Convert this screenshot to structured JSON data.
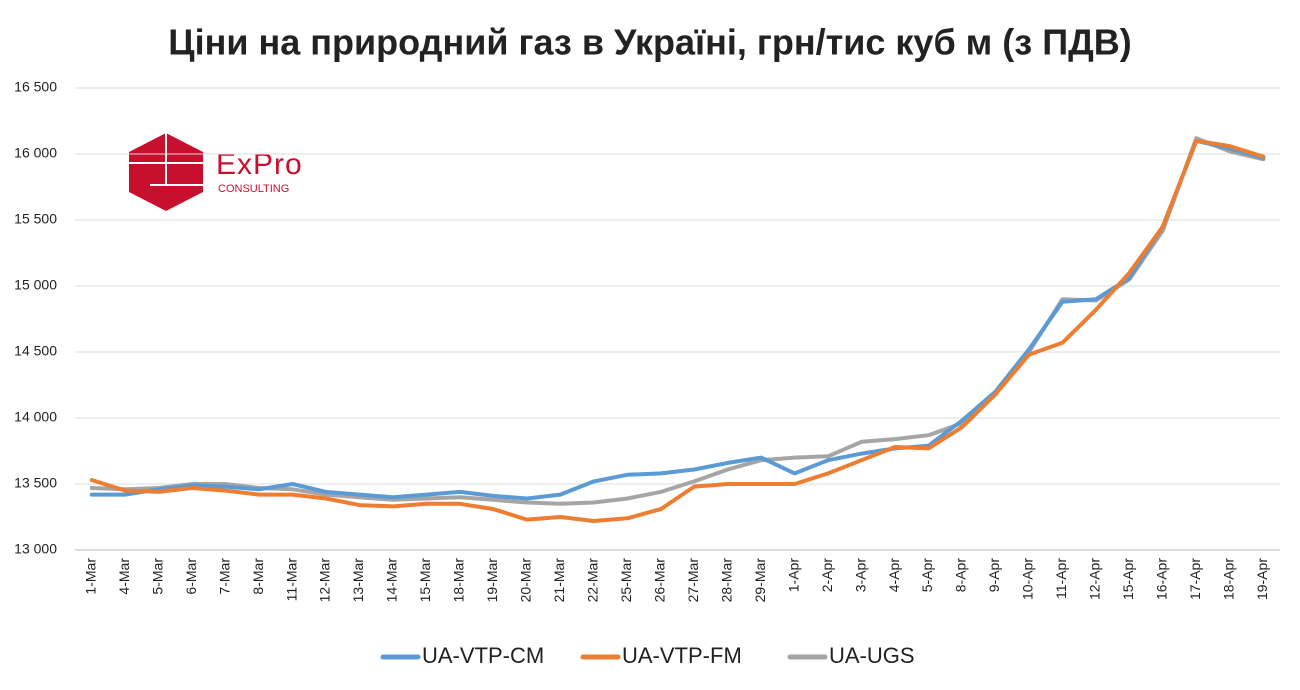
{
  "chart_data": {
    "type": "line",
    "title": "Ціни на природний газ в Україні, грн/тис куб м (з ПДВ)",
    "categories": [
      "1-Mar",
      "4-Mar",
      "5-Mar",
      "6-Mar",
      "7-Mar",
      "8-Mar",
      "11-Mar",
      "12-Mar",
      "13-Mar",
      "14-Mar",
      "15-Mar",
      "18-Mar",
      "19-Mar",
      "20-Mar",
      "21-Mar",
      "22-Mar",
      "25-Mar",
      "26-Mar",
      "27-Mar",
      "28-Mar",
      "29-Mar",
      "1-Apr",
      "2-Apr",
      "3-Apr",
      "4-Apr",
      "5-Apr",
      "8-Apr",
      "9-Apr",
      "10-Apr",
      "11-Apr",
      "12-Apr",
      "15-Apr",
      "16-Apr",
      "17-Apr",
      "18-Apr",
      "19-Apr"
    ],
    "series": [
      {
        "name": "UA-VTP-CM",
        "color": "#5b9bd5",
        "values": [
          13420,
          13420,
          13460,
          13490,
          13480,
          13460,
          13500,
          13440,
          13420,
          13400,
          13420,
          13440,
          13410,
          13390,
          13420,
          13520,
          13570,
          13580,
          13610,
          13660,
          13700,
          13580,
          13680,
          13730,
          13770,
          13790,
          13980,
          14200,
          14520,
          14880,
          14900,
          15060,
          15450,
          16100,
          16040,
          15970
        ]
      },
      {
        "name": "UA-VTP-FM",
        "color": "#ed7d31",
        "values": [
          13530,
          13450,
          13440,
          13470,
          13450,
          13420,
          13420,
          13390,
          13340,
          13330,
          13350,
          13350,
          13310,
          13230,
          13250,
          13220,
          13240,
          13310,
          13480,
          13500,
          13500,
          13500,
          13580,
          13680,
          13780,
          13770,
          13930,
          14180,
          14480,
          14570,
          14820,
          15100,
          15450,
          16100,
          16060,
          15980
        ]
      },
      {
        "name": "UA-UGS",
        "color": "#a5a5a5",
        "values": [
          13470,
          13460,
          13470,
          13500,
          13500,
          13470,
          13460,
          13420,
          13400,
          13380,
          13390,
          13400,
          13380,
          13360,
          13350,
          13360,
          13390,
          13440,
          13520,
          13610,
          13680,
          13700,
          13710,
          13820,
          13840,
          13870,
          13960,
          14190,
          14500,
          14900,
          14890,
          15050,
          15420,
          16120,
          16020,
          15960
        ]
      }
    ],
    "ylim": [
      13000,
      16500
    ],
    "yticks": [
      {
        "value": 13000,
        "label": "13 000"
      },
      {
        "value": 13500,
        "label": "13 500"
      },
      {
        "value": 14000,
        "label": "14 000"
      },
      {
        "value": 14500,
        "label": "14 500"
      },
      {
        "value": 15000,
        "label": "15 000"
      },
      {
        "value": 15500,
        "label": "15 500"
      },
      {
        "value": 16000,
        "label": "16 000"
      },
      {
        "value": 16500,
        "label": "16 500"
      }
    ],
    "grid": true
  },
  "logo": {
    "name": "ExPro",
    "subtitle": "CONSULTING"
  }
}
